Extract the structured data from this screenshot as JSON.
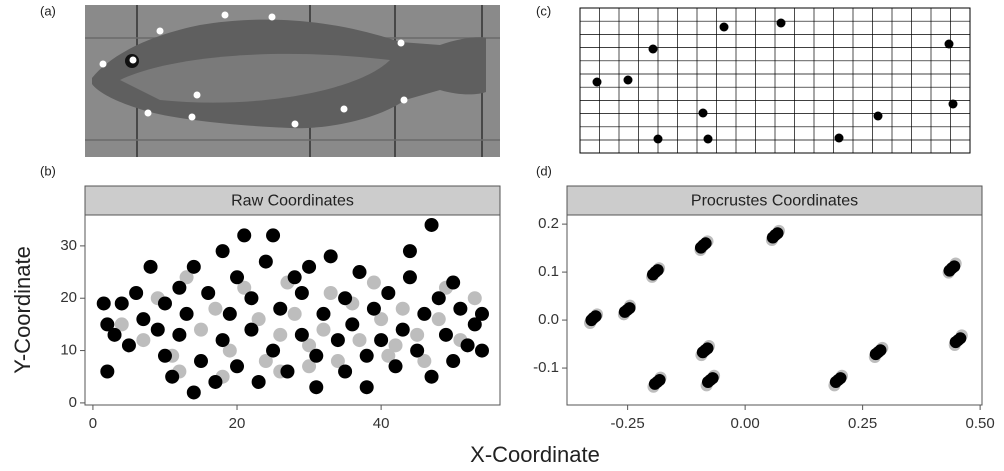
{
  "panel_labels": [
    "(a)",
    "(b)",
    "(c)",
    "(d)"
  ],
  "x_axis_label": "X-Coordinate",
  "y_axis_label": "Y-Coordinate",
  "chart_data": [
    {
      "type": "scatter",
      "title": "Raw Coordinates",
      "xlim": [
        -1.1,
        56.5
      ],
      "ylim": [
        -0.4,
        35.9
      ],
      "xticks": [
        0,
        20,
        40
      ],
      "yticks": [
        0,
        10,
        20,
        30
      ],
      "series": [
        {
          "color": "#bdbdbd",
          "x": [
            4,
            7,
            9,
            11,
            13,
            15,
            17,
            19,
            21,
            23,
            24,
            26,
            27,
            28,
            30,
            32,
            33,
            34,
            36,
            37,
            39,
            40,
            41,
            43,
            45,
            46,
            48,
            49,
            51,
            53,
            12,
            30,
            42,
            26,
            18
          ],
          "values": [
            15,
            12,
            20,
            9,
            24,
            14,
            18,
            10,
            22,
            16,
            8,
            13,
            23,
            17,
            11,
            14,
            21,
            8,
            19,
            12,
            23,
            16,
            9,
            18,
            13,
            8,
            16,
            22,
            12,
            20,
            6,
            7,
            11,
            6,
            5
          ]
        },
        {
          "color": "#000000",
          "x": [
            1.5,
            2,
            2,
            3,
            4,
            5,
            6,
            7,
            8,
            9,
            10,
            10,
            11,
            12,
            12,
            13,
            14,
            14,
            15,
            16,
            17,
            18,
            18,
            19,
            20,
            20,
            21,
            22,
            22,
            23,
            24,
            25,
            25,
            26,
            27,
            28,
            29,
            29,
            30,
            31,
            31,
            32,
            33,
            34,
            35,
            35,
            36,
            37,
            38,
            38,
            39,
            40,
            41,
            42,
            43,
            44,
            44,
            45,
            46,
            47,
            47,
            48,
            49,
            50,
            50,
            51,
            52,
            53,
            54,
            54
          ],
          "values": [
            19,
            6,
            15,
            13,
            19,
            11,
            21,
            16,
            26,
            14,
            9,
            19,
            5,
            22,
            13,
            17,
            2,
            26,
            8,
            21,
            4,
            12,
            29,
            17,
            7,
            24,
            32,
            14,
            20,
            4,
            27,
            10,
            32,
            18,
            6,
            24,
            13,
            21,
            26,
            9,
            3,
            17,
            28,
            12,
            20,
            6,
            15,
            25,
            9,
            3,
            18,
            12,
            21,
            7,
            14,
            29,
            24,
            10,
            17,
            34,
            5,
            20,
            13,
            23,
            8,
            18,
            11,
            15,
            10,
            17
          ]
        }
      ]
    },
    {
      "type": "scatter",
      "title": "Procrustes Coordinates",
      "xlim": [
        -0.379,
        0.504
      ],
      "ylim": [
        -0.177,
        0.219
      ],
      "xticks": [
        -0.25,
        {
          "value": 0,
          "label": "0.00"
        },
        0.25,
        {
          "value": 0.5,
          "label": "0.50"
        }
      ],
      "yticks": [
        0.2,
        0.1,
        {
          "value": 0,
          "label": "0.0"
        },
        -0.1
      ],
      "series": [
        {
          "color": "#bdbdbd",
          "x": [
            -0.33,
            -0.315,
            -0.258,
            -0.245,
            -0.198,
            -0.183,
            -0.095,
            -0.08,
            0.057,
            0.072,
            0.433,
            0.448,
            0.446,
            0.461,
            0.276,
            0.292,
            0.19,
            0.206,
            -0.093,
            -0.077,
            -0.082,
            -0.066,
            -0.195,
            -0.18
          ],
          "values": [
            -0.006,
            0.012,
            0.012,
            0.03,
            0.09,
            0.108,
            0.146,
            0.164,
            0.167,
            0.186,
            0.099,
            0.118,
            -0.052,
            -0.032,
            -0.077,
            -0.058,
            -0.136,
            -0.116,
            -0.073,
            -0.054,
            -0.136,
            -0.116,
            -0.139,
            -0.12
          ]
        },
        {
          "color": "#000000",
          "x": [
            -0.327,
            -0.318,
            -0.323,
            -0.256,
            -0.246,
            -0.251,
            -0.196,
            -0.186,
            -0.191,
            -0.094,
            -0.084,
            -0.089,
            0.059,
            0.069,
            0.064,
            0.435,
            0.445,
            0.44,
            0.448,
            0.458,
            0.453,
            0.278,
            0.288,
            0.283,
            0.193,
            0.203,
            0.198,
            -0.09,
            -0.08,
            -0.085,
            -0.079,
            -0.069,
            -0.074,
            -0.192,
            -0.182,
            -0.187
          ],
          "values": [
            0.0,
            0.008,
            0.004,
            0.017,
            0.025,
            0.021,
            0.095,
            0.104,
            0.1,
            0.151,
            0.16,
            0.156,
            0.172,
            0.181,
            0.177,
            0.103,
            0.112,
            0.108,
            -0.046,
            -0.038,
            -0.042,
            -0.071,
            -0.063,
            -0.067,
            -0.129,
            -0.121,
            -0.125,
            -0.067,
            -0.059,
            -0.063,
            -0.129,
            -0.121,
            -0.125,
            -0.133,
            -0.125,
            -0.129
          ]
        }
      ]
    }
  ]
}
